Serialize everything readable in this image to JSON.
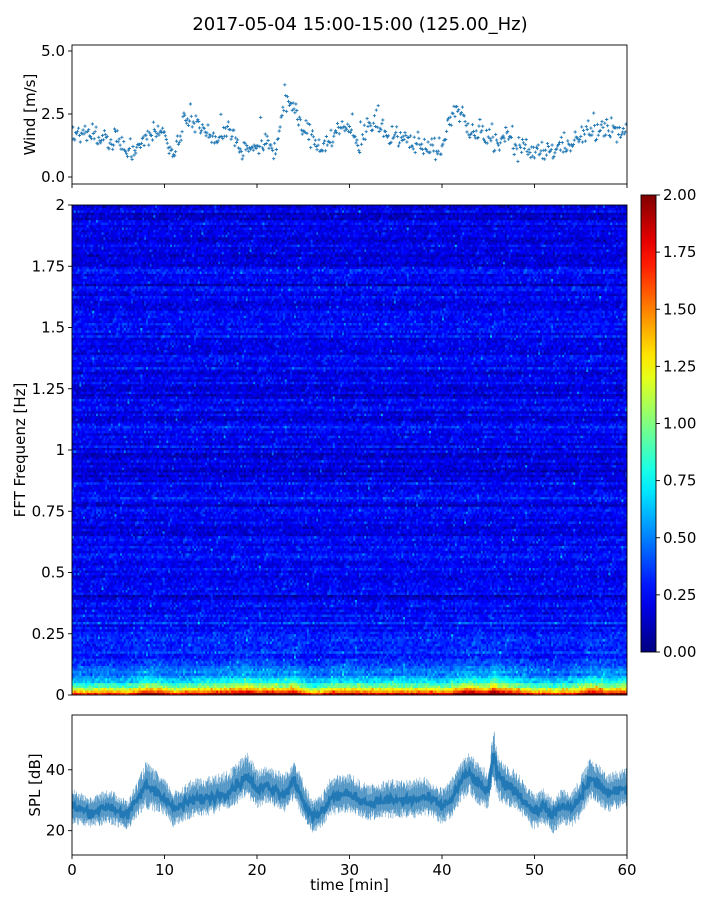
{
  "figure": {
    "title": "2017-05-04 15:00-15:00 (125.00_Hz)"
  },
  "chart_data": [
    {
      "type": "scatter",
      "name": "wind",
      "ylabel": "Wind [m/s]",
      "xlim": [
        0,
        60
      ],
      "ylim": [
        0,
        5
      ],
      "yticks": [
        "0.0",
        "2.5",
        "5.0"
      ],
      "ytick_values": [
        0,
        2.5,
        5
      ],
      "marker": "+",
      "color": "#1f77b4",
      "x_step_min": 0.1,
      "y_profile": {
        "t": [
          0,
          2,
          3,
          4,
          5,
          6,
          7,
          9,
          10,
          11,
          12,
          13,
          15,
          17,
          18,
          20,
          21,
          22,
          23,
          24,
          25,
          26,
          27,
          28,
          29,
          30,
          31,
          32,
          33,
          34,
          35,
          36,
          37,
          39,
          40,
          41,
          42,
          43,
          44,
          45,
          46,
          47,
          48,
          49,
          50,
          52,
          54,
          56,
          58,
          60
        ],
        "v": [
          1.5,
          1.9,
          1.6,
          1.4,
          1.6,
          0.9,
          1.2,
          1.8,
          1.7,
          0.8,
          2.1,
          2.4,
          1.4,
          2.0,
          1.1,
          1.2,
          1.3,
          1.0,
          3.2,
          2.6,
          1.9,
          1.6,
          1.2,
          1.6,
          1.9,
          1.9,
          1.3,
          2.1,
          2.1,
          1.6,
          1.4,
          1.5,
          1.4,
          1.2,
          1.0,
          2.5,
          2.7,
          1.7,
          1.7,
          1.6,
          1.3,
          1.7,
          1.1,
          1.1,
          0.9,
          1.1,
          1.4,
          1.8,
          1.9,
          1.7
        ]
      }
    },
    {
      "type": "heatmap",
      "name": "spectrogram",
      "ylabel": "FFT Frequenz [Hz]",
      "xlim": [
        0,
        60
      ],
      "ylim": [
        0,
        2
      ],
      "yticks": [
        "0",
        "0.25",
        "0.5",
        "0.75",
        "1",
        "1.25",
        "1.5",
        "1.75",
        "2"
      ],
      "ytick_values": [
        0,
        0.25,
        0.5,
        0.75,
        1,
        1.25,
        1.5,
        1.75,
        2
      ],
      "colormap": "jet",
      "clim": [
        0,
        2
      ],
      "colorbar_ticks": [
        "0.00",
        "0.25",
        "0.50",
        "0.75",
        "1.00",
        "1.25",
        "1.50",
        "1.75",
        "2.00"
      ],
      "colorbar_tick_values": [
        0,
        0.25,
        0.5,
        0.75,
        1,
        1.25,
        1.5,
        1.75,
        2
      ],
      "n_time_bins": 300,
      "n_freq_bins": 200,
      "background_level": 0.3,
      "low_freq_level": 1.6
    },
    {
      "type": "area",
      "name": "spl",
      "ylabel": "SPL [dB]",
      "xlabel": "time [min]",
      "xlim": [
        0,
        60
      ],
      "ylim": [
        12,
        58
      ],
      "yticks": [
        "20",
        "40"
      ],
      "ytick_values": [
        20,
        40
      ],
      "xticks": [
        "0",
        "10",
        "20",
        "30",
        "40",
        "50",
        "60"
      ],
      "xtick_values": [
        0,
        10,
        20,
        30,
        40,
        50,
        60
      ],
      "color": "#1f77b4",
      "band_profile": {
        "t": [
          0,
          2,
          4,
          6,
          7,
          8,
          10,
          11,
          13,
          15,
          17,
          19,
          20,
          21,
          23,
          24,
          25,
          26,
          27,
          28,
          30,
          32,
          34,
          36,
          37,
          38,
          39,
          40,
          41,
          42,
          43,
          44,
          45,
          45.6,
          46,
          47,
          48,
          50,
          51,
          52,
          53,
          54,
          55,
          56,
          57,
          58,
          60
        ],
        "mean": [
          28,
          26,
          28,
          25,
          30,
          35,
          31,
          27,
          30,
          31,
          33,
          38,
          33,
          35,
          32,
          37,
          30,
          24,
          26,
          31,
          32,
          29,
          30,
          30,
          30,
          31,
          30,
          28,
          30,
          36,
          39,
          35,
          33,
          45,
          38,
          35,
          33,
          26,
          28,
          25,
          28,
          27,
          31,
          37,
          35,
          32,
          34
        ],
        "lo": [
          22,
          21,
          22,
          20,
          24,
          27,
          25,
          21,
          24,
          25,
          27,
          31,
          27,
          29,
          26,
          30,
          24,
          19,
          21,
          25,
          26,
          23,
          24,
          24,
          24,
          25,
          24,
          22,
          24,
          29,
          32,
          28,
          27,
          36,
          30,
          28,
          27,
          20,
          22,
          19,
          22,
          21,
          24,
          30,
          28,
          26,
          28
        ],
        "hi": [
          34,
          31,
          34,
          30,
          36,
          43,
          37,
          33,
          37,
          38,
          40,
          46,
          40,
          42,
          39,
          44,
          37,
          30,
          32,
          38,
          39,
          35,
          37,
          37,
          37,
          38,
          36,
          34,
          37,
          43,
          46,
          42,
          40,
          55,
          45,
          42,
          40,
          32,
          34,
          31,
          34,
          33,
          38,
          44,
          42,
          39,
          41
        ]
      }
    }
  ]
}
